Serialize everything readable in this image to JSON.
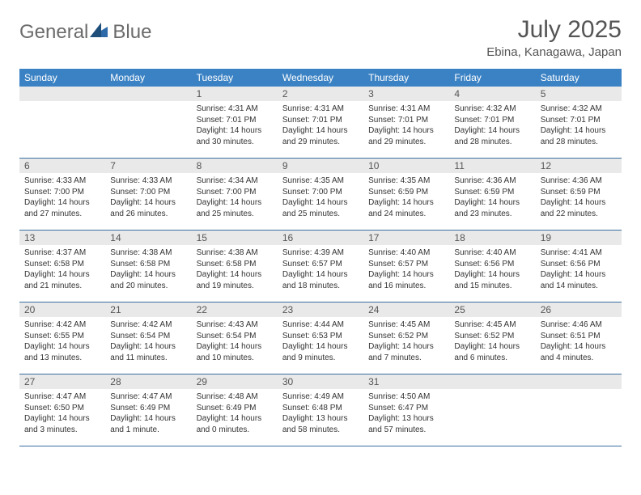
{
  "colors": {
    "header_bg": "#3b82c4",
    "header_text": "#ffffff",
    "day_num_bg": "#e9e9e9",
    "day_num_text": "#555555",
    "body_text": "#333333",
    "row_border": "#3b6fa0",
    "title_text": "#555555",
    "logo_gray": "#6b6b6b",
    "logo_blue": "#2f6aa8"
  },
  "logo": {
    "text1": "General",
    "text2": "Blue"
  },
  "title": "July 2025",
  "location": "Ebina, Kanagawa, Japan",
  "day_headers": [
    "Sunday",
    "Monday",
    "Tuesday",
    "Wednesday",
    "Thursday",
    "Friday",
    "Saturday"
  ],
  "weeks": [
    [
      null,
      null,
      {
        "n": "1",
        "sunrise": "4:31 AM",
        "sunset": "7:01 PM",
        "daylight": "14 hours and 30 minutes."
      },
      {
        "n": "2",
        "sunrise": "4:31 AM",
        "sunset": "7:01 PM",
        "daylight": "14 hours and 29 minutes."
      },
      {
        "n": "3",
        "sunrise": "4:31 AM",
        "sunset": "7:01 PM",
        "daylight": "14 hours and 29 minutes."
      },
      {
        "n": "4",
        "sunrise": "4:32 AM",
        "sunset": "7:01 PM",
        "daylight": "14 hours and 28 minutes."
      },
      {
        "n": "5",
        "sunrise": "4:32 AM",
        "sunset": "7:01 PM",
        "daylight": "14 hours and 28 minutes."
      }
    ],
    [
      {
        "n": "6",
        "sunrise": "4:33 AM",
        "sunset": "7:00 PM",
        "daylight": "14 hours and 27 minutes."
      },
      {
        "n": "7",
        "sunrise": "4:33 AM",
        "sunset": "7:00 PM",
        "daylight": "14 hours and 26 minutes."
      },
      {
        "n": "8",
        "sunrise": "4:34 AM",
        "sunset": "7:00 PM",
        "daylight": "14 hours and 25 minutes."
      },
      {
        "n": "9",
        "sunrise": "4:35 AM",
        "sunset": "7:00 PM",
        "daylight": "14 hours and 25 minutes."
      },
      {
        "n": "10",
        "sunrise": "4:35 AM",
        "sunset": "6:59 PM",
        "daylight": "14 hours and 24 minutes."
      },
      {
        "n": "11",
        "sunrise": "4:36 AM",
        "sunset": "6:59 PM",
        "daylight": "14 hours and 23 minutes."
      },
      {
        "n": "12",
        "sunrise": "4:36 AM",
        "sunset": "6:59 PM",
        "daylight": "14 hours and 22 minutes."
      }
    ],
    [
      {
        "n": "13",
        "sunrise": "4:37 AM",
        "sunset": "6:58 PM",
        "daylight": "14 hours and 21 minutes."
      },
      {
        "n": "14",
        "sunrise": "4:38 AM",
        "sunset": "6:58 PM",
        "daylight": "14 hours and 20 minutes."
      },
      {
        "n": "15",
        "sunrise": "4:38 AM",
        "sunset": "6:58 PM",
        "daylight": "14 hours and 19 minutes."
      },
      {
        "n": "16",
        "sunrise": "4:39 AM",
        "sunset": "6:57 PM",
        "daylight": "14 hours and 18 minutes."
      },
      {
        "n": "17",
        "sunrise": "4:40 AM",
        "sunset": "6:57 PM",
        "daylight": "14 hours and 16 minutes."
      },
      {
        "n": "18",
        "sunrise": "4:40 AM",
        "sunset": "6:56 PM",
        "daylight": "14 hours and 15 minutes."
      },
      {
        "n": "19",
        "sunrise": "4:41 AM",
        "sunset": "6:56 PM",
        "daylight": "14 hours and 14 minutes."
      }
    ],
    [
      {
        "n": "20",
        "sunrise": "4:42 AM",
        "sunset": "6:55 PM",
        "daylight": "14 hours and 13 minutes."
      },
      {
        "n": "21",
        "sunrise": "4:42 AM",
        "sunset": "6:54 PM",
        "daylight": "14 hours and 11 minutes."
      },
      {
        "n": "22",
        "sunrise": "4:43 AM",
        "sunset": "6:54 PM",
        "daylight": "14 hours and 10 minutes."
      },
      {
        "n": "23",
        "sunrise": "4:44 AM",
        "sunset": "6:53 PM",
        "daylight": "14 hours and 9 minutes."
      },
      {
        "n": "24",
        "sunrise": "4:45 AM",
        "sunset": "6:52 PM",
        "daylight": "14 hours and 7 minutes."
      },
      {
        "n": "25",
        "sunrise": "4:45 AM",
        "sunset": "6:52 PM",
        "daylight": "14 hours and 6 minutes."
      },
      {
        "n": "26",
        "sunrise": "4:46 AM",
        "sunset": "6:51 PM",
        "daylight": "14 hours and 4 minutes."
      }
    ],
    [
      {
        "n": "27",
        "sunrise": "4:47 AM",
        "sunset": "6:50 PM",
        "daylight": "14 hours and 3 minutes."
      },
      {
        "n": "28",
        "sunrise": "4:47 AM",
        "sunset": "6:49 PM",
        "daylight": "14 hours and 1 minute."
      },
      {
        "n": "29",
        "sunrise": "4:48 AM",
        "sunset": "6:49 PM",
        "daylight": "14 hours and 0 minutes."
      },
      {
        "n": "30",
        "sunrise": "4:49 AM",
        "sunset": "6:48 PM",
        "daylight": "13 hours and 58 minutes."
      },
      {
        "n": "31",
        "sunrise": "4:50 AM",
        "sunset": "6:47 PM",
        "daylight": "13 hours and 57 minutes."
      },
      null,
      null
    ]
  ],
  "labels": {
    "sunrise": "Sunrise: ",
    "sunset": "Sunset: ",
    "daylight": "Daylight: "
  }
}
